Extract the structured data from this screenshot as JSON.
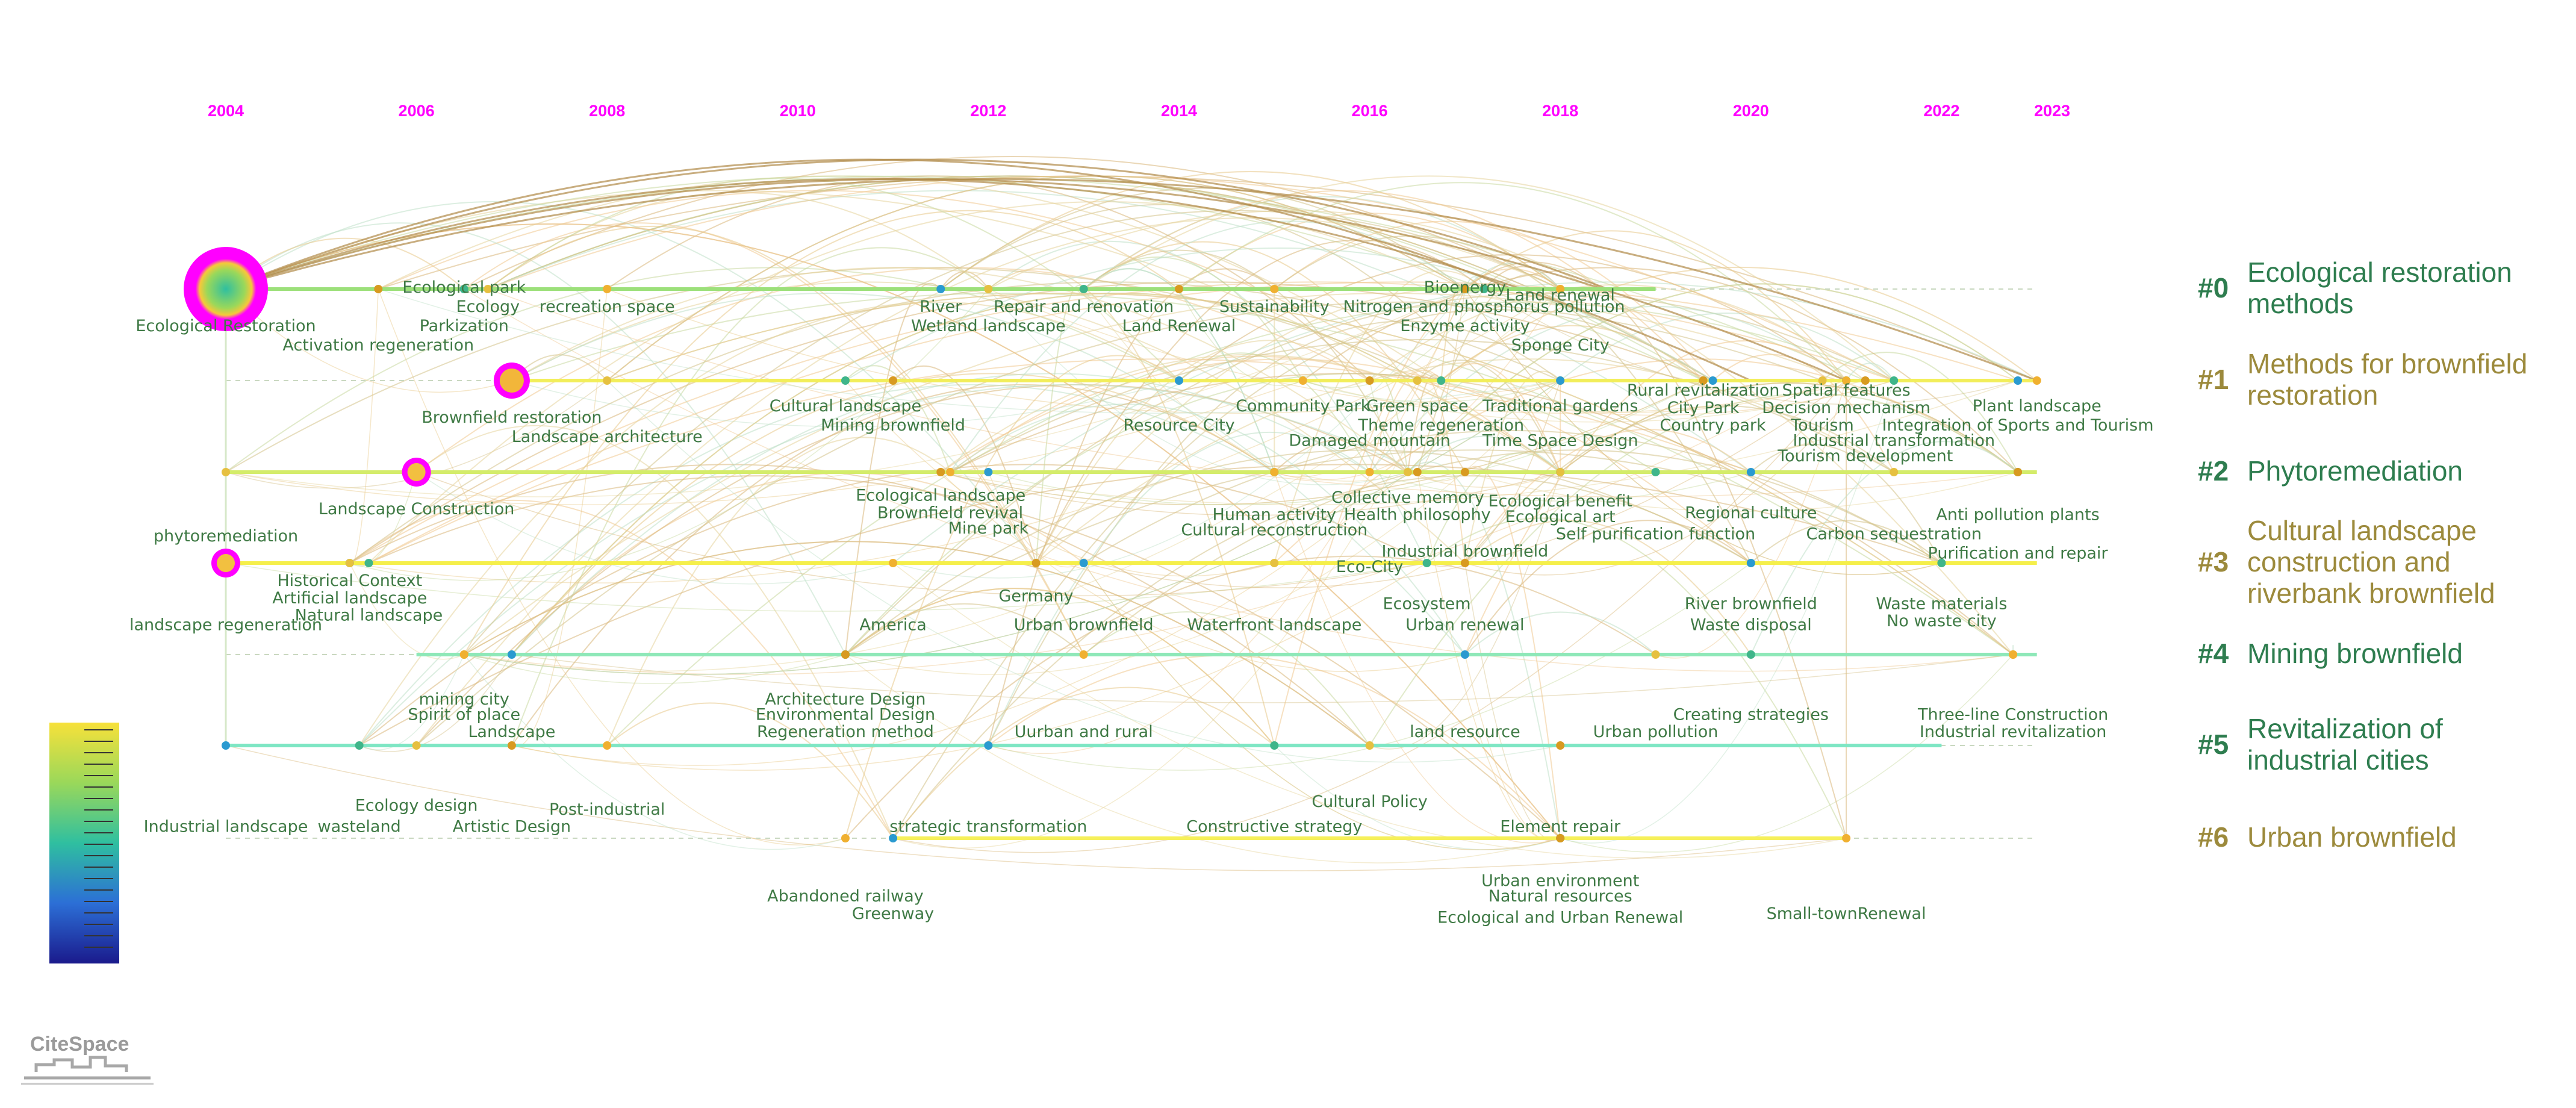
{
  "years": [
    "2004",
    "2006",
    "2008",
    "2010",
    "2012",
    "2014",
    "2016",
    "2018",
    "2020",
    "2022",
    "2023"
  ],
  "clusters": [
    {
      "id": "#0",
      "name": [
        "Ecological restoration",
        " methods"
      ],
      "color": "#2e7d4f",
      "line_color": "#9ce07a",
      "start": "2004",
      "end": "2019"
    },
    {
      "id": "#1",
      "name": [
        "Methods for brownfield",
        "restoration"
      ],
      "color": "#9c8a3c",
      "line_color": "#f2ee5a",
      "start": "2007",
      "end": "2023"
    },
    {
      "id": "#2",
      "name": [
        "Phytoremediation"
      ],
      "color": "#2e7d4f",
      "line_color": "#d4ec6a",
      "start": "2004",
      "end": "2023"
    },
    {
      "id": "#3",
      "name": [
        "Cultural landscape",
        "construction and",
        "riverbank brownfield"
      ],
      "color": "#9c8a3c",
      "line_color": "#f5ef4a",
      "start": "2004",
      "end": "2023"
    },
    {
      "id": "#4",
      "name": [
        "Mining brownfield"
      ],
      "color": "#2e7d4f",
      "line_color": "#8ee8b8",
      "start": "2006",
      "end": "2023"
    },
    {
      "id": "#5",
      "name": [
        "Revitalization of",
        "industrial cities"
      ],
      "color": "#2e7d4f",
      "line_color": "#7ee6c4",
      "start": "2004",
      "end": "2022"
    },
    {
      "id": "#6",
      "name": [
        "Urban brownfield"
      ],
      "color": "#9c8a3c",
      "line_color": "#f6f05a",
      "start": "2011",
      "end": "2021"
    }
  ],
  "keywords": [
    {
      "text": "Ecological Restoration",
      "year": 2004,
      "cluster": 0,
      "size": "large",
      "label_row": 0
    },
    {
      "text": "Ecological park",
      "year": 2006.5,
      "cluster": 0,
      "label_row": -2
    },
    {
      "text": "Ecology",
      "year": 2006.75,
      "cluster": 0,
      "label_row": -1
    },
    {
      "text": "Parkization",
      "year": 2006.5,
      "cluster": 0,
      "label_row": 0
    },
    {
      "text": "Activation regeneration",
      "year": 2005.6,
      "cluster": 0,
      "label_row": 1
    },
    {
      "text": "recreation space",
      "year": 2008,
      "cluster": 0,
      "label_row": -1
    },
    {
      "text": "River",
      "year": 2011.5,
      "cluster": 0,
      "label_row": -1
    },
    {
      "text": "Wetland landscape",
      "year": 2012,
      "cluster": 0,
      "label_row": 0
    },
    {
      "text": "Repair and renovation",
      "year": 2013,
      "cluster": 0,
      "label_row": -1
    },
    {
      "text": "Land Renewal",
      "year": 2014,
      "cluster": 0,
      "label_row": 0
    },
    {
      "text": "Sustainability",
      "year": 2015,
      "cluster": 0,
      "label_row": -1
    },
    {
      "text": "Bioenergy",
      "year": 2017,
      "cluster": 0,
      "label_row": -2
    },
    {
      "text": "Land renewal",
      "year": 2018,
      "cluster": 0,
      "label_row": -1.6
    },
    {
      "text": "Nitrogen and phosphorus pollution",
      "year": 2017.2,
      "cluster": 0,
      "label_row": -1
    },
    {
      "text": "Enzyme activity",
      "year": 2017,
      "cluster": 0,
      "label_row": 0
    },
    {
      "text": "Sponge City",
      "year": 2018,
      "cluster": 0,
      "label_row": 1
    },
    {
      "text": "Brownfield restoration",
      "year": 2007,
      "cluster": 1,
      "size": "medium",
      "label_row": 0
    },
    {
      "text": "Landscape architecture",
      "year": 2008,
      "cluster": 1,
      "label_row": 1
    },
    {
      "text": "Cultural landscape",
      "year": 2010.5,
      "cluster": 1,
      "label_row": -0.6
    },
    {
      "text": "Mining brownfield",
      "year": 2011,
      "cluster": 1,
      "label_row": 0.4
    },
    {
      "text": "Community Park",
      "year": 2015.3,
      "cluster": 1,
      "label_row": -0.6
    },
    {
      "text": "Resource City",
      "year": 2014,
      "cluster": 1,
      "label_row": 0.4
    },
    {
      "text": "Green space",
      "year": 2016.5,
      "cluster": 1,
      "label_row": -0.6
    },
    {
      "text": "Theme regeneration",
      "year": 2016.75,
      "cluster": 1,
      "label_row": 0.4
    },
    {
      "text": "Damaged mountain",
      "year": 2016,
      "cluster": 1,
      "label_row": 1.2
    },
    {
      "text": "Traditional gardens",
      "year": 2018,
      "cluster": 1,
      "label_row": -0.6
    },
    {
      "text": "Time Space Design",
      "year": 2018,
      "cluster": 1,
      "label_row": 1.2
    },
    {
      "text": "Rural revitalization",
      "year": 2019.5,
      "cluster": 1,
      "label_row": -1.4
    },
    {
      "text": "Spatial features",
      "year": 2021,
      "cluster": 1,
      "label_row": -1.4
    },
    {
      "text": "City Park",
      "year": 2019.5,
      "cluster": 1,
      "label_row": -0.5
    },
    {
      "text": "Decision mechanism",
      "year": 2021,
      "cluster": 1,
      "label_row": -0.5
    },
    {
      "text": "Country park",
      "year": 2019.6,
      "cluster": 1,
      "label_row": 0.4
    },
    {
      "text": "Tourism",
      "year": 2020.75,
      "cluster": 1,
      "label_row": 0.4
    },
    {
      "text": "Industrial transformation",
      "year": 2021.5,
      "cluster": 1,
      "label_row": 1.2
    },
    {
      "text": "Tourism development",
      "year": 2021.2,
      "cluster": 1,
      "label_row": 2
    },
    {
      "text": "Plant landscape",
      "year": 2023,
      "cluster": 1,
      "label_row": -0.6
    },
    {
      "text": "Integration of Sports and Tourism",
      "year": 2022.8,
      "cluster": 1,
      "label_row": 0.4
    },
    {
      "text": "phytoremediation",
      "year": 2004,
      "cluster": 2,
      "label_row": 1.4
    },
    {
      "text": "Landscape Construction",
      "year": 2006,
      "cluster": 2,
      "size": "small",
      "label_row": 0
    },
    {
      "text": "Ecological landscape",
      "year": 2011.5,
      "cluster": 2,
      "label_row": -0.7
    },
    {
      "text": "Brownfield revival",
      "year": 2011.6,
      "cluster": 2,
      "label_row": 0.2
    },
    {
      "text": "Mine park",
      "year": 2012,
      "cluster": 2,
      "label_row": 1
    },
    {
      "text": "Collective memory",
      "year": 2016.4,
      "cluster": 2,
      "label_row": -0.6
    },
    {
      "text": "Human activity",
      "year": 2015,
      "cluster": 2,
      "label_row": 0.3
    },
    {
      "text": "Health philosophy",
      "year": 2016.5,
      "cluster": 2,
      "label_row": 0.3
    },
    {
      "text": "Cultural reconstruction",
      "year": 2015,
      "cluster": 2,
      "label_row": 1.1
    },
    {
      "text": "Ecological benefit",
      "year": 2018,
      "cluster": 2,
      "label_row": -0.4
    },
    {
      "text": "Ecological art",
      "year": 2018,
      "cluster": 2,
      "label_row": 0.4
    },
    {
      "text": "Self purification function",
      "year": 2019,
      "cluster": 2,
      "label_row": 1.3
    },
    {
      "text": "Industrial brownfield",
      "year": 2017,
      "cluster": 2,
      "label_row": 2.2
    },
    {
      "text": "Eco-City",
      "year": 2016,
      "cluster": 2,
      "label_row": 3
    },
    {
      "text": "Regional culture",
      "year": 2020,
      "cluster": 2,
      "label_row": 0.2
    },
    {
      "text": "Carbon sequestration",
      "year": 2021.5,
      "cluster": 2,
      "label_row": 1.3
    },
    {
      "text": "Anti pollution plants",
      "year": 2022.8,
      "cluster": 2,
      "label_row": 0.3
    },
    {
      "text": "Purification and repair",
      "year": 2022.8,
      "cluster": 2,
      "label_row": 2.3
    },
    {
      "text": "landscape regeneration",
      "year": 2004,
      "cluster": 3,
      "size": "small",
      "label_row": 1.3
    },
    {
      "text": "Historical Context",
      "year": 2005.3,
      "cluster": 3,
      "label_row": -1
    },
    {
      "text": "Artificial landscape",
      "year": 2005.3,
      "cluster": 3,
      "label_row": -0.1
    },
    {
      "text": "Natural landscape",
      "year": 2005.5,
      "cluster": 3,
      "label_row": 0.8
    },
    {
      "text": "Germany",
      "year": 2012.5,
      "cluster": 3,
      "label_row": -0.2
    },
    {
      "text": "America",
      "year": 2011,
      "cluster": 3,
      "label_row": 1.3
    },
    {
      "text": "Urban brownfield",
      "year": 2013,
      "cluster": 3,
      "label_row": 1.3
    },
    {
      "text": "Waterfront landscape",
      "year": 2015,
      "cluster": 3,
      "label_row": 1.3
    },
    {
      "text": "Ecosystem",
      "year": 2016.6,
      "cluster": 3,
      "label_row": 0.2
    },
    {
      "text": "Urban renewal",
      "year": 2017,
      "cluster": 3,
      "label_row": 1.3
    },
    {
      "text": "River brownfield",
      "year": 2020,
      "cluster": 3,
      "label_row": 0.2
    },
    {
      "text": "Waste disposal",
      "year": 2020,
      "cluster": 3,
      "label_row": 1.3
    },
    {
      "text": "Waste materials",
      "year": 2022,
      "cluster": 3,
      "label_row": 0.2
    },
    {
      "text": "No waste city",
      "year": 2022,
      "cluster": 3,
      "label_row": 1.1
    },
    {
      "text": "mining city",
      "year": 2006.5,
      "cluster": 4,
      "label_row": 0.4
    },
    {
      "text": "Spirit of place",
      "year": 2006.5,
      "cluster": 4,
      "label_row": 1.2
    },
    {
      "text": "Landscape",
      "year": 2007,
      "cluster": 4,
      "label_row": 2.1
    },
    {
      "text": "Architecture Design",
      "year": 2010.5,
      "cluster": 4,
      "label_row": 0.4
    },
    {
      "text": "Environmental Design",
      "year": 2010.5,
      "cluster": 4,
      "label_row": 1.2
    },
    {
      "text": "Regeneration method",
      "year": 2010.5,
      "cluster": 4,
      "label_row": 2.1
    },
    {
      "text": "Uurban and rural",
      "year": 2013,
      "cluster": 4,
      "label_row": 2.1
    },
    {
      "text": "land resource",
      "year": 2017,
      "cluster": 4,
      "label_row": 2.1
    },
    {
      "text": "Urban pollution",
      "year": 2019,
      "cluster": 4,
      "label_row": 2.1
    },
    {
      "text": "Creating strategies",
      "year": 2020,
      "cluster": 4,
      "label_row": 1.2
    },
    {
      "text": "Three-line Construction",
      "year": 2022.75,
      "cluster": 4,
      "label_row": 1.2
    },
    {
      "text": "Industrial revitalization",
      "year": 2022.75,
      "cluster": 4,
      "label_row": 2.1
    },
    {
      "text": "Industrial landscape",
      "year": 2004,
      "cluster": 5,
      "label_row": 2.3
    },
    {
      "text": "Ecology design",
      "year": 2006,
      "cluster": 5,
      "label_row": 1.2
    },
    {
      "text": "wasteland",
      "year": 2005.4,
      "cluster": 5,
      "label_row": 2.3
    },
    {
      "text": "Artistic Design",
      "year": 2007,
      "cluster": 5,
      "label_row": 2.3
    },
    {
      "text": "Post-industrial",
      "year": 2008,
      "cluster": 5,
      "label_row": 1.4
    },
    {
      "text": "strategic transformation",
      "year": 2012,
      "cluster": 5,
      "label_row": 2.3
    },
    {
      "text": "Cultural Policy",
      "year": 2016,
      "cluster": 5,
      "label_row": 1
    },
    {
      "text": "Constructive strategy",
      "year": 2015,
      "cluster": 5,
      "label_row": 2.3
    },
    {
      "text": "Element repair",
      "year": 2018,
      "cluster": 5,
      "label_row": 2.3
    },
    {
      "text": "Abandoned railway",
      "year": 2010.5,
      "cluster": 6,
      "label_row": 1.1
    },
    {
      "text": "Greenway",
      "year": 2011,
      "cluster": 6,
      "label_row": 2
    },
    {
      "text": "Urban environment",
      "year": 2018,
      "cluster": 6,
      "label_row": 0.3
    },
    {
      "text": "Natural resources",
      "year": 2018,
      "cluster": 6,
      "label_row": 1.1
    },
    {
      "text": "Ecological and Urban Renewal",
      "year": 2018,
      "cluster": 6,
      "label_row": 2.2
    },
    {
      "text": "Small-townRenewal",
      "year": 2021,
      "cluster": 6,
      "label_row": 2
    }
  ],
  "colorbar": {
    "from": "#1a1a8c",
    "via": [
      "#2c6fd6",
      "#2fbfa0",
      "#9ad85a",
      "#f7e13a"
    ],
    "to": "#f7e13a"
  },
  "logo_text": "CiteSpace"
}
